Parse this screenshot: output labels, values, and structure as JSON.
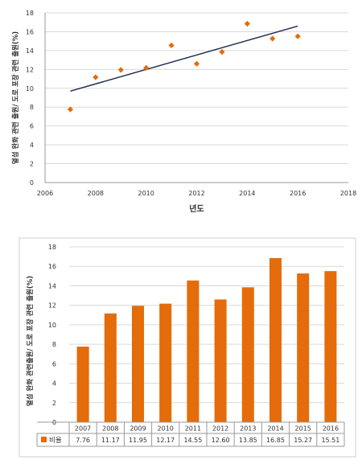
{
  "chart_data": [
    {
      "type": "scatter",
      "xlabel": "년도",
      "ylabel": "열섬 완화 관련 출원/ 도로 포장 관련 출원(%)",
      "xlim": [
        2006,
        2018
      ],
      "ylim": [
        0,
        18
      ],
      "x_ticks": [
        2006,
        2008,
        2010,
        2012,
        2014,
        2016,
        2018
      ],
      "y_ticks": [
        0,
        2,
        4,
        6,
        8,
        10,
        12,
        14,
        16,
        18
      ],
      "grid": true,
      "series": [
        {
          "x": [
            2007,
            2008,
            2009,
            2010,
            2011,
            2012,
            2013,
            2014,
            2015,
            2016
          ],
          "y": [
            7.76,
            11.17,
            11.95,
            12.17,
            14.55,
            12.6,
            13.85,
            16.85,
            15.27,
            15.51
          ],
          "color": "#E46C0A",
          "marker": "diamond"
        }
      ],
      "trendline": {
        "x": [
          2007,
          2016
        ],
        "y": [
          9.7,
          16.6
        ],
        "color": "#1F2D4F"
      }
    },
    {
      "type": "bar",
      "ylabel": "열섬 완화 관련출원/ 도로 포장 관련 출원(%)",
      "ylim": [
        0,
        18
      ],
      "y_ticks": [
        0,
        2,
        4,
        6,
        8,
        10,
        12,
        14,
        16,
        18
      ],
      "grid": true,
      "categories": [
        "2007",
        "2008",
        "2009",
        "2010",
        "2011",
        "2012",
        "2013",
        "2014",
        "2015",
        "2016"
      ],
      "series": [
        {
          "name": "비율",
          "values": [
            7.76,
            11.17,
            11.95,
            12.17,
            14.55,
            12.6,
            13.85,
            16.85,
            15.27,
            15.51
          ],
          "labels": [
            "7.76",
            "11.17",
            "11.95",
            "12.17",
            "14.55",
            "12.60",
            "13.85",
            "16.85",
            "15.27",
            "15.51"
          ],
          "color": "#E46C0A"
        }
      ]
    }
  ]
}
